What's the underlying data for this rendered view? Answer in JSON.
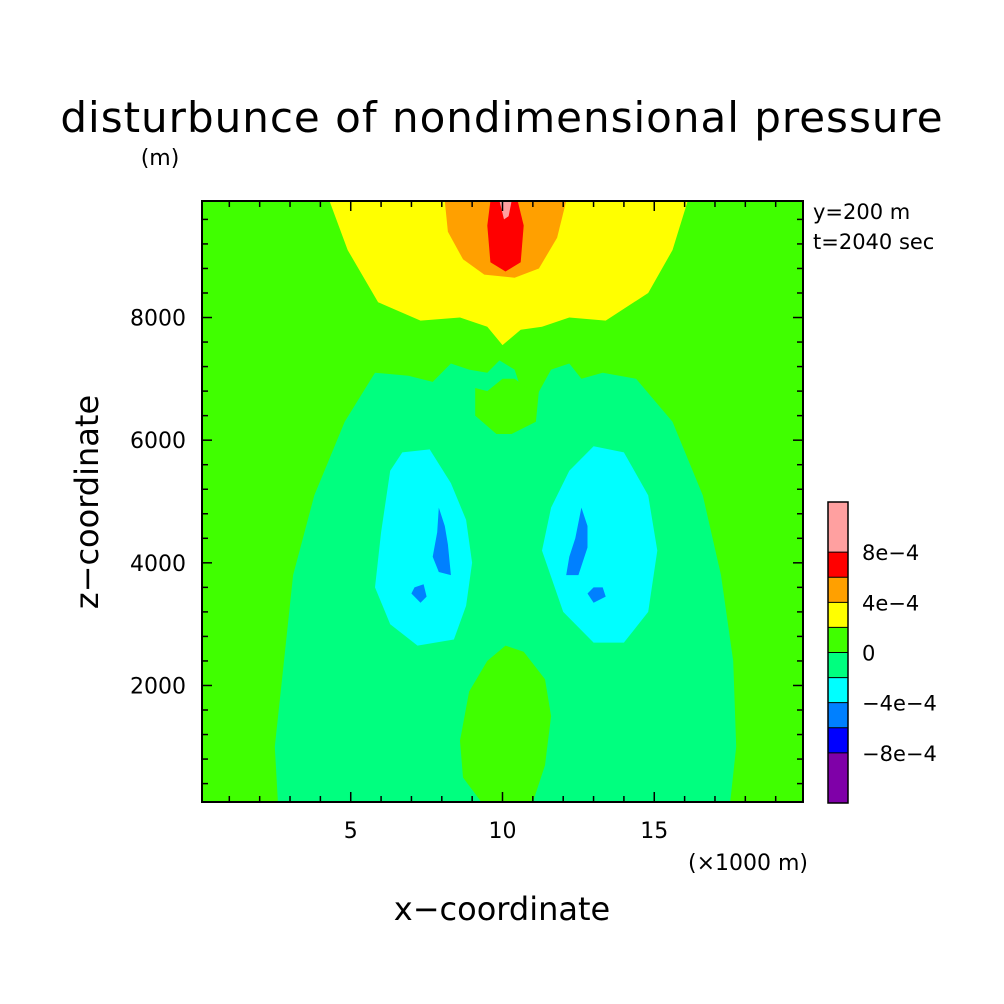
{
  "chart_data": {
    "type": "heatmap",
    "title": "disturbunce of nondimensional pressure",
    "y_unit": "(m)",
    "xlabel": "x−coordinate",
    "ylabel": "z−coordinate",
    "x_unit": "(×1000 m)",
    "annotations": [
      "y=200 m",
      "t=2040 sec"
    ],
    "xlim": [
      0.1,
      19.9
    ],
    "ylim": [
      100,
      9900
    ],
    "x_ticks": [
      5,
      10,
      15
    ],
    "y_ticks": [
      2000,
      4000,
      6000,
      8000
    ],
    "x_tick_labels": [
      "5",
      "10",
      "15"
    ],
    "y_tick_labels": [
      "2000",
      "4000",
      "6000",
      "8000"
    ],
    "x_minor_step": 1,
    "y_minor_step": 400,
    "colorbar": {
      "levels": [
        -0.0012,
        -0.0008,
        -0.0004,
        0,
        0.0004,
        0.0008,
        0.0012
      ],
      "labels": [
        "−8e−4",
        "−4e−4",
        "0",
        "4e−4",
        "8e−4"
      ],
      "label_values": [
        -0.0008,
        -0.0004,
        0,
        0.0004,
        0.0008
      ],
      "colors": [
        "#7f00a8",
        "#0000ff",
        "#0080ff",
        "#00ffff",
        "#00ff7f",
        "#40ff00",
        "#ffff00",
        "#ffa000",
        "#ff0000",
        "#ffa0a0"
      ],
      "bins": [
        [
          -0.0012,
          -0.0008
        ],
        [
          -0.0008,
          -0.0006
        ],
        [
          -0.0006,
          -0.0004
        ],
        [
          -0.0004,
          -0.0002
        ],
        [
          -0.0002,
          0
        ],
        [
          0,
          0.0002
        ],
        [
          0.0002,
          0.0004
        ],
        [
          0.0004,
          0.0006
        ],
        [
          0.0006,
          0.0008
        ],
        [
          0.0008,
          0.0012
        ]
      ]
    },
    "background_value": 0.0001,
    "regions": [
      {
        "name": "upper-yellow",
        "value": 0.0003,
        "points": [
          [
            4.3,
            9900
          ],
          [
            16.1,
            9900
          ],
          [
            15.6,
            9100
          ],
          [
            14.8,
            8400
          ],
          [
            13.4,
            7950
          ],
          [
            12.2,
            8000
          ],
          [
            11.3,
            7850
          ],
          [
            10.6,
            7800
          ],
          [
            10.0,
            7550
          ],
          [
            9.5,
            7850
          ],
          [
            8.6,
            8000
          ],
          [
            7.3,
            7950
          ],
          [
            5.9,
            8250
          ],
          [
            4.9,
            9100
          ]
        ]
      },
      {
        "name": "upper-orange",
        "value": 0.0005,
        "points": [
          [
            8.1,
            9900
          ],
          [
            12.1,
            9900
          ],
          [
            11.8,
            9300
          ],
          [
            11.2,
            8800
          ],
          [
            10.4,
            8650
          ],
          [
            9.4,
            8700
          ],
          [
            8.7,
            8950
          ],
          [
            8.2,
            9400
          ]
        ]
      },
      {
        "name": "upper-red",
        "value": 0.0007,
        "points": [
          [
            9.6,
            9900
          ],
          [
            10.5,
            9900
          ],
          [
            10.7,
            9500
          ],
          [
            10.6,
            8900
          ],
          [
            10.1,
            8750
          ],
          [
            9.6,
            8900
          ],
          [
            9.5,
            9500
          ]
        ]
      },
      {
        "name": "upper-pink",
        "value": 0.001,
        "points": [
          [
            9.9,
            9900
          ],
          [
            10.3,
            9900
          ],
          [
            10.2,
            9650
          ],
          [
            10.05,
            9600
          ]
        ]
      },
      {
        "name": "outer-lower-green",
        "value": -0.0001,
        "points": [
          [
            2.6,
            100
          ],
          [
            17.5,
            100
          ],
          [
            17.7,
            1000
          ],
          [
            17.6,
            2400
          ],
          [
            17.2,
            3800
          ],
          [
            16.6,
            5100
          ],
          [
            15.6,
            6300
          ],
          [
            14.4,
            7000
          ],
          [
            13.3,
            7100
          ],
          [
            12.6,
            7000
          ],
          [
            12.2,
            7250
          ],
          [
            11.6,
            7150
          ],
          [
            11.1,
            6700
          ],
          [
            10.7,
            6700
          ],
          [
            10.4,
            7150
          ],
          [
            9.9,
            7300
          ],
          [
            9.5,
            7100
          ],
          [
            8.9,
            7150
          ],
          [
            8.3,
            7250
          ],
          [
            7.7,
            6950
          ],
          [
            6.9,
            7050
          ],
          [
            5.8,
            7100
          ],
          [
            4.8,
            6300
          ],
          [
            3.8,
            5100
          ],
          [
            3.1,
            3800
          ],
          [
            2.8,
            2400
          ],
          [
            2.5,
            1000
          ]
        ]
      },
      {
        "name": "center-island",
        "value": 0.0001,
        "points": [
          [
            9.1,
            6400
          ],
          [
            9.8,
            6100
          ],
          [
            10.3,
            6100
          ],
          [
            11.1,
            6300
          ],
          [
            11.2,
            6800
          ],
          [
            10.8,
            6850
          ],
          [
            10.4,
            7000
          ],
          [
            10.0,
            7000
          ],
          [
            9.5,
            6800
          ],
          [
            9.1,
            6850
          ]
        ]
      },
      {
        "name": "lower-center-bump",
        "value": 0.0001,
        "points": [
          [
            9.3,
            100
          ],
          [
            11.0,
            100
          ],
          [
            11.4,
            700
          ],
          [
            11.6,
            1500
          ],
          [
            11.4,
            2100
          ],
          [
            10.7,
            2550
          ],
          [
            10.1,
            2650
          ],
          [
            9.5,
            2400
          ],
          [
            8.9,
            1900
          ],
          [
            8.6,
            1100
          ],
          [
            8.7,
            500
          ]
        ]
      },
      {
        "name": "cyan-left",
        "value": -0.0003,
        "points": [
          [
            6.0,
            4500
          ],
          [
            5.8,
            3600
          ],
          [
            6.3,
            3000
          ],
          [
            7.2,
            2650
          ],
          [
            8.4,
            2750
          ],
          [
            8.8,
            3300
          ],
          [
            9.0,
            4000
          ],
          [
            8.8,
            4700
          ],
          [
            8.3,
            5300
          ],
          [
            7.6,
            5850
          ],
          [
            6.7,
            5800
          ],
          [
            6.3,
            5500
          ]
        ]
      },
      {
        "name": "cyan-right",
        "value": -0.0003,
        "points": [
          [
            11.3,
            4200
          ],
          [
            11.6,
            4900
          ],
          [
            12.2,
            5500
          ],
          [
            13.0,
            5900
          ],
          [
            14.0,
            5800
          ],
          [
            14.8,
            5100
          ],
          [
            15.1,
            4200
          ],
          [
            14.8,
            3200
          ],
          [
            14.0,
            2700
          ],
          [
            13.0,
            2700
          ],
          [
            12.0,
            3200
          ]
        ]
      },
      {
        "name": "blue-left-streak",
        "value": -0.0005,
        "points": [
          [
            7.9,
            4900
          ],
          [
            8.1,
            4600
          ],
          [
            8.2,
            4300
          ],
          [
            8.3,
            3800
          ],
          [
            7.9,
            3850
          ],
          [
            7.7,
            4100
          ],
          [
            7.85,
            4500
          ]
        ]
      },
      {
        "name": "blue-left-dot",
        "value": -0.0005,
        "points": [
          [
            7.0,
            3500
          ],
          [
            7.3,
            3350
          ],
          [
            7.5,
            3450
          ],
          [
            7.4,
            3650
          ],
          [
            7.1,
            3600
          ]
        ]
      },
      {
        "name": "blue-right-streak",
        "value": -0.0005,
        "points": [
          [
            12.6,
            4900
          ],
          [
            12.8,
            4600
          ],
          [
            12.8,
            4250
          ],
          [
            12.5,
            3800
          ],
          [
            12.1,
            3800
          ],
          [
            12.2,
            4100
          ],
          [
            12.4,
            4400
          ]
        ]
      },
      {
        "name": "blue-right-dot",
        "value": -0.0005,
        "points": [
          [
            12.8,
            3500
          ],
          [
            13.0,
            3350
          ],
          [
            13.4,
            3450
          ],
          [
            13.3,
            3600
          ],
          [
            13.0,
            3600
          ]
        ]
      }
    ]
  }
}
